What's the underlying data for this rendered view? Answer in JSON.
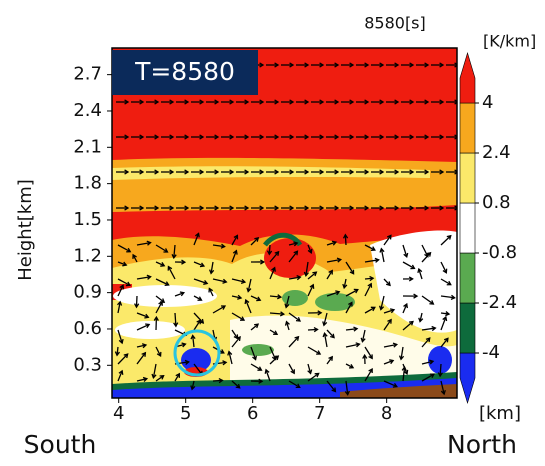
{
  "chart_data": {
    "type": "contour",
    "time_label": "8580[s]",
    "annotation": "T=8580",
    "y_label": "Height[km]",
    "x_unit": "[km]",
    "x_left_label": "South",
    "x_right_label": "North",
    "xlim": [
      3.9,
      9.05
    ],
    "xticks": [
      4,
      5,
      6,
      7,
      8
    ],
    "ylim": [
      0.03,
      2.92
    ],
    "yticks": [
      0.3,
      0.6,
      0.9,
      1.2,
      1.5,
      1.8,
      2.1,
      2.4,
      2.7
    ],
    "colorbar": {
      "label": "[K/km]",
      "ticks": [
        -4,
        -2.4,
        -0.8,
        0.8,
        2.4,
        4
      ],
      "colors": [
        "#1a2cf0",
        "#0e6b3c",
        "#5aaa50",
        "#ffffff",
        "#fbe96a",
        "#f7a81e",
        "#ef1d10"
      ]
    }
  }
}
